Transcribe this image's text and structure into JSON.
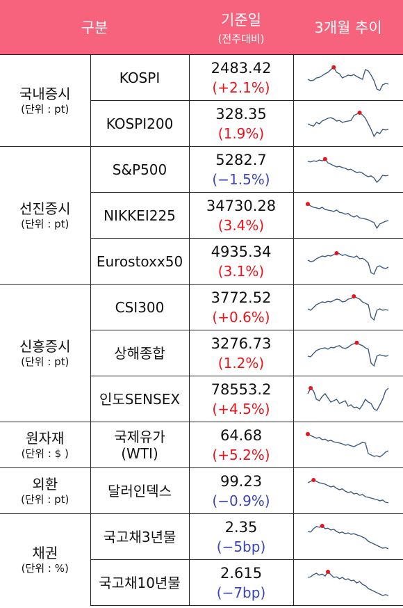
{
  "header": {
    "col_category": "구분",
    "col_value": "기준일",
    "col_value_sub": "(전주대비)",
    "col_trend": "3개월 추이"
  },
  "groups": [
    {
      "name": "국내증시",
      "unit": "(단위 : pt)",
      "items": [
        {
          "name": "KOSPI",
          "value": "2483.42",
          "change": "(+2.1%)",
          "dir": "up",
          "trend": [
            0.55,
            0.6,
            0.58,
            0.5,
            0.48,
            0.42,
            0.35,
            0.3,
            0.2,
            0.12,
            0.3,
            0.35,
            0.5,
            0.45,
            0.4,
            0.42,
            0.38,
            0.45,
            0.5,
            0.55,
            0.2,
            0.25,
            0.4,
            0.6,
            0.9,
            0.95,
            0.75,
            0.7,
            0.72
          ]
        },
        {
          "name": "KOSPI200",
          "value": "328.35",
          "change": "(1.9%)",
          "dir": "up",
          "trend": [
            0.5,
            0.55,
            0.58,
            0.45,
            0.5,
            0.4,
            0.35,
            0.3,
            0.28,
            0.32,
            0.4,
            0.38,
            0.45,
            0.42,
            0.4,
            0.38,
            0.2,
            0.15,
            0.1,
            0.18,
            0.3,
            0.5,
            0.7,
            0.95,
            0.8,
            0.85,
            0.7,
            0.72,
            0.7
          ]
        }
      ]
    },
    {
      "name": "선진증시",
      "unit": "(단위 : pt)",
      "items": [
        {
          "name": "S&P500",
          "value": "5282.7",
          "change": "(−1.5%)",
          "dir": "down",
          "trend": [
            0.2,
            0.22,
            0.18,
            0.2,
            0.15,
            0.18,
            0.12,
            0.25,
            0.3,
            0.35,
            0.4,
            0.38,
            0.42,
            0.45,
            0.5,
            0.48,
            0.55,
            0.6,
            0.58,
            0.62,
            0.7,
            0.75,
            0.72,
            0.8,
            0.95,
            0.85,
            0.7,
            0.72,
            0.7
          ]
        },
        {
          "name": "NIKKEI225",
          "value": "34730.28",
          "change": "(3.4%)",
          "dir": "up",
          "trend": [
            0.08,
            0.15,
            0.2,
            0.22,
            0.25,
            0.2,
            0.28,
            0.3,
            0.32,
            0.35,
            0.3,
            0.38,
            0.4,
            0.45,
            0.42,
            0.5,
            0.55,
            0.5,
            0.58,
            0.6,
            0.62,
            0.65,
            0.7,
            0.75,
            0.95,
            0.8,
            0.75,
            0.7,
            0.68
          ]
        }
      ]
    },
    {
      "name": "",
      "unit": "",
      "items": [
        {
          "name": "Eurostoxx50",
          "value": "4935.34",
          "change": "(3.1%)",
          "dir": "up",
          "trend": [
            0.45,
            0.5,
            0.48,
            0.4,
            0.35,
            0.3,
            0.32,
            0.28,
            0.3,
            0.25,
            0.2,
            0.22,
            0.28,
            0.25,
            0.3,
            0.32,
            0.35,
            0.3,
            0.4,
            0.38,
            0.45,
            0.55,
            0.9,
            0.95,
            0.7,
            0.65,
            0.72,
            0.75,
            0.7
          ]
        }
      ]
    },
    {
      "name": "신흥증시",
      "unit": "(단위 : pt)",
      "items": [
        {
          "name": "CSI300",
          "value": "3772.52",
          "change": "(+0.6%)",
          "dir": "up",
          "trend": [
            0.55,
            0.6,
            0.5,
            0.4,
            0.35,
            0.3,
            0.32,
            0.28,
            0.3,
            0.25,
            0.2,
            0.22,
            0.3,
            0.28,
            0.2,
            0.18,
            0.1,
            0.15,
            0.2,
            0.3,
            0.35,
            0.4,
            0.85,
            0.95,
            0.6,
            0.55,
            0.6,
            0.58,
            0.6
          ]
        },
        {
          "name": "상해종합",
          "value": "3276.73",
          "change": "(1.2%)",
          "dir": "up",
          "trend": [
            0.6,
            0.62,
            0.5,
            0.4,
            0.35,
            0.32,
            0.3,
            0.35,
            0.28,
            0.3,
            0.25,
            0.22,
            0.3,
            0.32,
            0.28,
            0.2,
            0.15,
            0.12,
            0.18,
            0.22,
            0.3,
            0.35,
            0.85,
            0.95,
            0.6,
            0.55,
            0.58,
            0.6,
            0.58
          ]
        },
        {
          "name": "인도SENSEX",
          "value": "78553.2",
          "change": "(+4.5%)",
          "dir": "up",
          "trend": [
            0.3,
            0.1,
            0.2,
            0.5,
            0.55,
            0.4,
            0.3,
            0.45,
            0.6,
            0.55,
            0.5,
            0.65,
            0.6,
            0.55,
            0.75,
            0.7,
            0.8,
            0.78,
            0.85,
            0.7,
            0.5,
            0.6,
            0.65,
            0.85,
            0.9,
            0.7,
            0.5,
            0.2,
            0.1
          ]
        }
      ]
    },
    {
      "name": "원자재",
      "unit": "(단위 : $ )",
      "items": [
        {
          "name": "국제유가\n(WTI)",
          "value": "64.68",
          "change": "(+5.2%)",
          "dir": "up",
          "trend": [
            0.1,
            0.15,
            0.2,
            0.25,
            0.22,
            0.3,
            0.28,
            0.35,
            0.32,
            0.38,
            0.4,
            0.42,
            0.45,
            0.5,
            0.48,
            0.52,
            0.55,
            0.5,
            0.45,
            0.4,
            0.42,
            0.8,
            0.85,
            0.9,
            0.88,
            0.92,
            0.85,
            0.75,
            0.7
          ]
        }
      ]
    },
    {
      "name": "외환",
      "unit": "(단위 : pt)",
      "items": [
        {
          "name": "달러인덱스",
          "value": "99.23",
          "change": "(−0.9%)",
          "dir": "down",
          "trend": [
            0.2,
            0.15,
            0.1,
            0.15,
            0.2,
            0.22,
            0.25,
            0.3,
            0.35,
            0.32,
            0.4,
            0.45,
            0.42,
            0.5,
            0.55,
            0.52,
            0.6,
            0.58,
            0.65,
            0.62,
            0.7,
            0.72,
            0.75,
            0.78,
            0.8,
            0.85,
            0.82,
            0.9,
            0.92
          ]
        }
      ]
    },
    {
      "name": "채권",
      "unit": "(단위 : %)",
      "items": [
        {
          "name": "국고채3년물",
          "value": "2.35",
          "change": "(−5bp)",
          "dir": "down",
          "trend": [
            0.3,
            0.32,
            0.2,
            0.12,
            0.15,
            0.1,
            0.2,
            0.18,
            0.25,
            0.22,
            0.3,
            0.35,
            0.32,
            0.38,
            0.35,
            0.4,
            0.38,
            0.42,
            0.45,
            0.5,
            0.55,
            0.65,
            0.7,
            0.75,
            0.8,
            0.85,
            0.9,
            0.88,
            0.92
          ]
        },
        {
          "name": "국고채10년물",
          "value": "2.615",
          "change": "(−7bp)",
          "dir": "down",
          "trend": [
            0.3,
            0.28,
            0.2,
            0.15,
            0.22,
            0.18,
            0.25,
            0.1,
            0.2,
            0.3,
            0.28,
            0.35,
            0.3,
            0.38,
            0.35,
            0.42,
            0.4,
            0.5,
            0.45,
            0.55,
            0.6,
            0.7,
            0.75,
            0.8,
            0.85,
            0.9,
            0.95,
            0.92,
            0.95
          ]
        }
      ]
    }
  ]
}
